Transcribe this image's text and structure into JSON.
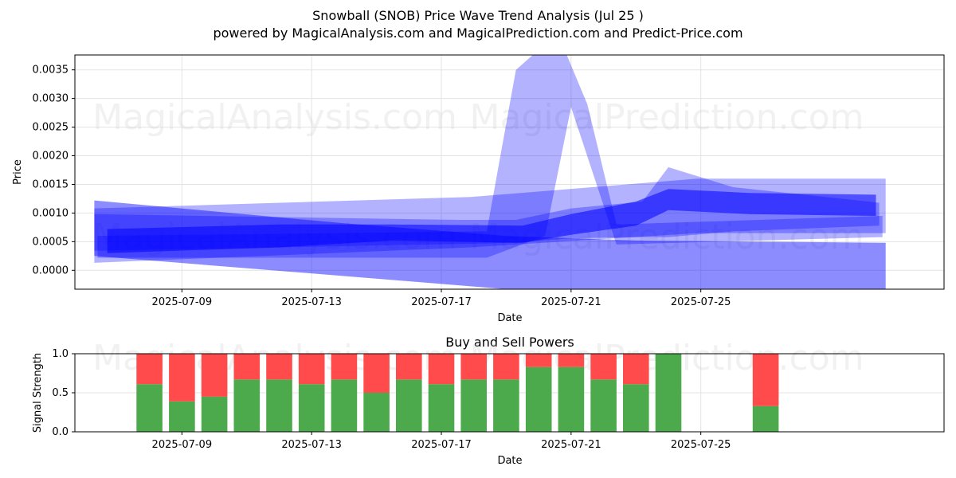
{
  "header": {
    "title": "Snowball (SNOB) Price Wave Trend Analysis (Jul 25 )",
    "subtitle": "powered by MagicalAnalysis.com and MagicalPrediction.com and Predict-Price.com"
  },
  "watermarks": [
    "MagicalAnalysis.com",
    "MagicalPrediction.com"
  ],
  "colors": {
    "band": "#0000ff",
    "buy": "#4caa4c",
    "sell": "#ff4b4b",
    "grid": "#e3e3e3"
  },
  "chart_data": [
    {
      "type": "area",
      "title": "",
      "xlabel": "Date",
      "ylabel": "Price",
      "ylim": [
        -0.00033,
        0.00376
      ],
      "xlim_days": [
        -3.3,
        23.5
      ],
      "x_origin": "2025-07-09",
      "grid": true,
      "x_ticks": [
        {
          "day": 0,
          "label": "2025-07-09"
        },
        {
          "day": 4,
          "label": "2025-07-13"
        },
        {
          "day": 8,
          "label": "2025-07-17"
        },
        {
          "day": 12,
          "label": "2025-07-21"
        },
        {
          "day": 16,
          "label": "2025-07-25"
        }
      ],
      "y_ticks": [
        {
          "value": 0.0,
          "label": "0.0000"
        },
        {
          "value": 0.0005,
          "label": "0.0005"
        },
        {
          "value": 0.001,
          "label": "0.0010"
        },
        {
          "value": 0.0015,
          "label": "0.0015"
        },
        {
          "value": 0.002,
          "label": "0.0020"
        },
        {
          "value": 0.0025,
          "label": "0.0025"
        },
        {
          "value": 0.003,
          "label": "0.0030"
        },
        {
          "value": 0.0035,
          "label": "0.0035"
        }
      ],
      "bands": [
        {
          "name": "wide-upper-envelope",
          "opacity": 0.3,
          "upper": [
            [
              -2.7,
              0.00108
            ],
            [
              8.9,
              0.00128
            ],
            [
              15.9,
              0.0016
            ],
            [
              21.7,
              0.0016
            ]
          ],
          "lower": [
            [
              21.7,
              0.00065
            ],
            [
              15.9,
              0.00065
            ],
            [
              8.9,
              0.0004
            ],
            [
              -2.7,
              0.00013
            ]
          ]
        },
        {
          "name": "rising-wave",
          "opacity": 0.3,
          "upper": [
            [
              -2.7,
              0.00098
            ],
            [
              8.5,
              0.00088
            ],
            [
              10.3,
              0.00088
            ],
            [
              12.0,
              0.00108
            ],
            [
              14.2,
              0.0012
            ],
            [
              15.0,
              0.0018
            ],
            [
              17.0,
              0.00145
            ],
            [
              21.5,
              0.00118
            ]
          ],
          "lower": [
            [
              21.5,
              0.00078
            ],
            [
              17.0,
              0.00068
            ],
            [
              15.0,
              0.00058
            ],
            [
              14.2,
              0.00058
            ],
            [
              12.0,
              0.00056
            ],
            [
              10.3,
              0.00048
            ],
            [
              8.5,
              0.00046
            ],
            [
              -2.7,
              0.00034
            ]
          ]
        },
        {
          "name": "spike-wave",
          "opacity": 0.3,
          "upper": [
            [
              -2.6,
              0.0006
            ],
            [
              9.4,
              0.00068
            ],
            [
              10.3,
              0.0035
            ],
            [
              11.0,
              0.00385
            ],
            [
              11.8,
              0.00385
            ],
            [
              12.5,
              0.0029
            ],
            [
              13.4,
              0.0008
            ],
            [
              21.6,
              0.00095
            ]
          ],
          "lower": [
            [
              21.6,
              0.00058
            ],
            [
              13.4,
              0.00045
            ],
            [
              12.0,
              0.00285
            ],
            [
              11.2,
              0.0006
            ],
            [
              9.4,
              0.00022
            ],
            [
              -2.6,
              0.00022
            ]
          ]
        },
        {
          "name": "descending-lower-band",
          "opacity": 0.45,
          "upper": [
            [
              -2.7,
              0.00122
            ],
            [
              5.0,
              0.00082
            ],
            [
              10.0,
              0.0006
            ],
            [
              14.0,
              0.00052
            ],
            [
              21.7,
              0.00048
            ]
          ],
          "lower": [
            [
              21.7,
              -0.00033
            ],
            [
              14.0,
              -0.00033
            ],
            [
              10.0,
              -0.00033
            ],
            [
              5.0,
              -0.0001
            ],
            [
              -2.7,
              0.00025
            ]
          ]
        },
        {
          "name": "core-wave",
          "opacity": 0.55,
          "upper": [
            [
              -2.3,
              0.00072
            ],
            [
              3.0,
              0.0008
            ],
            [
              6.5,
              0.0008
            ],
            [
              10.5,
              0.00078
            ],
            [
              12.0,
              0.00098
            ],
            [
              14.0,
              0.0012
            ],
            [
              15.0,
              0.00142
            ],
            [
              17.5,
              0.00135
            ],
            [
              21.4,
              0.00132
            ]
          ],
          "lower": [
            [
              21.4,
              0.00095
            ],
            [
              17.5,
              0.00098
            ],
            [
              15.0,
              0.00105
            ],
            [
              14.0,
              0.00078
            ],
            [
              12.0,
              0.00062
            ],
            [
              10.5,
              0.00048
            ],
            [
              6.5,
              0.00052
            ],
            [
              3.0,
              0.0004
            ],
            [
              -2.3,
              0.0003
            ]
          ]
        }
      ]
    },
    {
      "type": "bar",
      "title": "Buy and Sell Powers",
      "xlabel": "Date",
      "ylabel": "Signal Strength",
      "ylim": [
        0,
        1
      ],
      "grid": true,
      "x_origin": "2025-07-09",
      "x_ticks": [
        {
          "day": 0,
          "label": "2025-07-09"
        },
        {
          "day": 4,
          "label": "2025-07-13"
        },
        {
          "day": 8,
          "label": "2025-07-17"
        },
        {
          "day": 12,
          "label": "2025-07-21"
        },
        {
          "day": 16,
          "label": "2025-07-25"
        }
      ],
      "y_ticks": [
        {
          "value": 0.0,
          "label": "0.0"
        },
        {
          "value": 0.5,
          "label": "0.5"
        },
        {
          "value": 1.0,
          "label": "1.0"
        }
      ],
      "series": [
        {
          "name": "Buy",
          "color": "#4caa4c"
        },
        {
          "name": "Sell",
          "color": "#ff4b4b"
        }
      ],
      "bars": [
        {
          "date": "2025-07-08",
          "day": -1,
          "buy": 0.61
        },
        {
          "date": "2025-07-09",
          "day": 0,
          "buy": 0.39
        },
        {
          "date": "2025-07-10",
          "day": 1,
          "buy": 0.45
        },
        {
          "date": "2025-07-11",
          "day": 2,
          "buy": 0.67
        },
        {
          "date": "2025-07-12",
          "day": 3,
          "buy": 0.67
        },
        {
          "date": "2025-07-13",
          "day": 4,
          "buy": 0.61
        },
        {
          "date": "2025-07-14",
          "day": 5,
          "buy": 0.67
        },
        {
          "date": "2025-07-15",
          "day": 6,
          "buy": 0.5
        },
        {
          "date": "2025-07-16",
          "day": 7,
          "buy": 0.67
        },
        {
          "date": "2025-07-17",
          "day": 8,
          "buy": 0.61
        },
        {
          "date": "2025-07-18",
          "day": 9,
          "buy": 0.67
        },
        {
          "date": "2025-07-19",
          "day": 10,
          "buy": 0.67
        },
        {
          "date": "2025-07-20",
          "day": 11,
          "buy": 0.83
        },
        {
          "date": "2025-07-21",
          "day": 12,
          "buy": 0.83
        },
        {
          "date": "2025-07-22",
          "day": 13,
          "buy": 0.67
        },
        {
          "date": "2025-07-23",
          "day": 14,
          "buy": 0.61
        },
        {
          "date": "2025-07-24",
          "day": 15,
          "buy": 1.0
        },
        {
          "date": "2025-07-27",
          "day": 18,
          "buy": 0.33
        }
      ]
    }
  ]
}
